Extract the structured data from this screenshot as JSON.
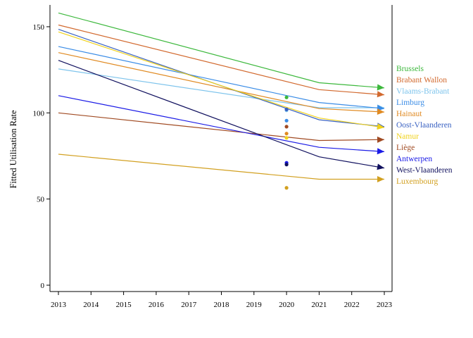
{
  "chart_data": {
    "type": "line",
    "title": "",
    "xlabel": "",
    "ylabel": "Fitted Utilisation Rate",
    "xlim": [
      2013,
      2023
    ],
    "ylim": [
      0,
      160
    ],
    "x_ticks": [
      "2013",
      "2014",
      "2015",
      "2016",
      "2017",
      "2018",
      "2019",
      "2020",
      "2021",
      "2022",
      "2023"
    ],
    "y_ticks": [
      "0",
      "50",
      "100",
      "150"
    ],
    "grid": false,
    "legend_placement": "right, labels at line ends",
    "x": [
      2013,
      2021,
      2023
    ],
    "series": [
      {
        "name": "Brussels",
        "color": "#3cb83c",
        "values": [
          158,
          117.5,
          114.5
        ],
        "point_2020": 109
      },
      {
        "name": "Brabant Wallon",
        "color": "#d2692e",
        "values": [
          151,
          113.5,
          110.5
        ],
        "point_2020": 102
      },
      {
        "name": "Vlaams-Brabant",
        "color": "#7ec4ec",
        "values": [
          125.5,
          103,
          103
        ],
        "point_2020": 101.5
      },
      {
        "name": "Limburg",
        "color": "#3a8ce6",
        "values": [
          138.5,
          106,
          102.5
        ],
        "point_2020": 95.5
      },
      {
        "name": "Hainaut",
        "color": "#e08a22",
        "values": [
          135,
          102.5,
          100.5
        ],
        "point_2020": 88
      },
      {
        "name": "Oost-Vlaanderen",
        "color": "#3a62c2",
        "values": [
          148.5,
          96,
          92
        ],
        "point_2020": 102
      },
      {
        "name": "Namur",
        "color": "#f0d21c",
        "values": [
          147,
          97,
          91.5
        ],
        "point_2020": 85.5
      },
      {
        "name": "Liège",
        "color": "#a04a22",
        "values": [
          100,
          84,
          84.5
        ],
        "point_2020": 92
      },
      {
        "name": "Antwerpen",
        "color": "#1a1ae6",
        "values": [
          110,
          80,
          77.5
        ],
        "point_2020": 71
      },
      {
        "name": "West-Vlaanderen",
        "color": "#10105e",
        "values": [
          130.5,
          74.5,
          68
        ],
        "point_2020": 70
      },
      {
        "name": "Luxembourg",
        "color": "#d2a020",
        "values": [
          76,
          61.5,
          61.5
        ],
        "point_2020": 56.5
      }
    ]
  }
}
